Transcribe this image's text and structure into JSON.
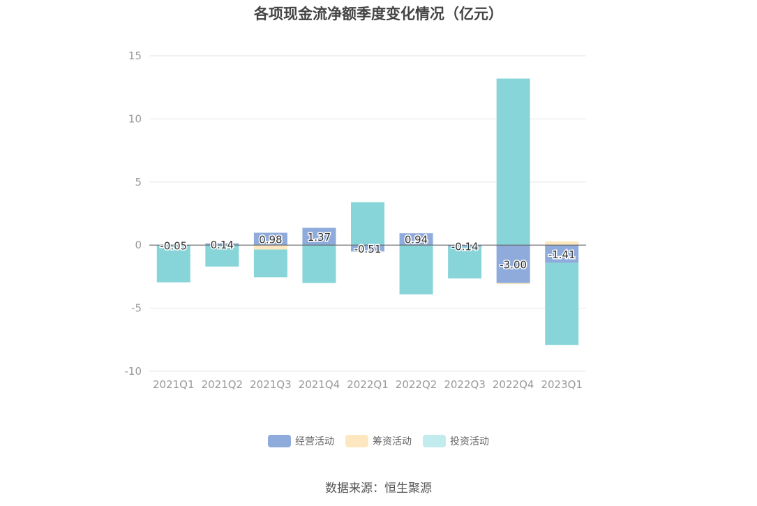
{
  "chart_data": {
    "type": "bar",
    "stacked": true,
    "title": "各项现金流净额季度变化情况（亿元）",
    "categories": [
      "2021Q1",
      "2021Q2",
      "2021Q3",
      "2021Q4",
      "2022Q1",
      "2022Q2",
      "2022Q3",
      "2022Q4",
      "2023Q1"
    ],
    "series": [
      {
        "name": "经营活动",
        "color": "#8eabdb",
        "values": [
          -0.05,
          0.14,
          0.98,
          1.37,
          -0.51,
          0.94,
          -0.14,
          -3.0,
          -1.41
        ]
      },
      {
        "name": "筹资活动",
        "color": "#fde7c0",
        "values": [
          0.0,
          0.0,
          -0.35,
          0.0,
          0.0,
          0.0,
          0.0,
          -0.1,
          0.3
        ]
      },
      {
        "name": "投资活动",
        "color": "#88d5d9",
        "values": [
          -2.9,
          -1.7,
          -2.2,
          -3.0,
          3.4,
          -3.9,
          -2.5,
          13.2,
          -6.5
        ]
      }
    ],
    "data_labels": [
      "-0.05",
      "0.14",
      "0.98",
      "1.37",
      "-0.51",
      "0.94",
      "-0.14",
      "-3.00",
      "-1.41"
    ],
    "yticks": [
      15,
      10,
      5,
      0,
      -5,
      -10
    ],
    "ylim": [
      -10,
      15
    ],
    "grid": true,
    "legend_position": "bottom"
  },
  "legend_items": [
    {
      "label": "经营活动",
      "color": "#8eabdb"
    },
    {
      "label": "筹资活动",
      "color": "#fde7c0"
    },
    {
      "label": "投资活动",
      "color": "#c2ebee"
    }
  ],
  "source": "数据来源：恒生聚源"
}
